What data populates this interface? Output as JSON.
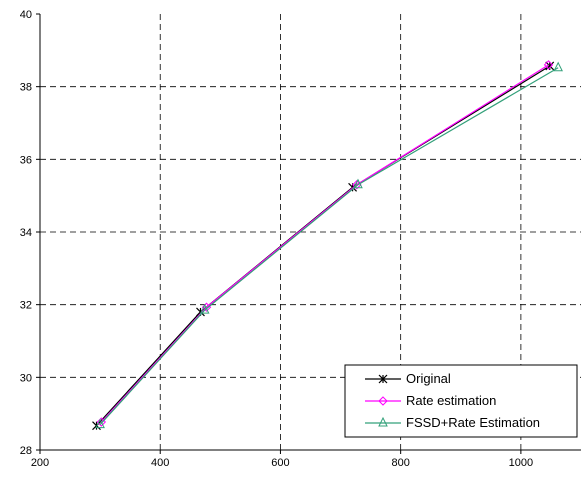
{
  "chart_data": {
    "type": "line",
    "title": "",
    "xlabel": "",
    "ylabel": "",
    "xlim": [
      200,
      1100
    ],
    "ylim": [
      28,
      40
    ],
    "xticks": [
      200,
      400,
      600,
      800,
      1000
    ],
    "yticks": [
      28,
      30,
      32,
      34,
      36,
      38,
      40
    ],
    "grid": true,
    "legend_position": "bottom-right",
    "series": [
      {
        "name": "Original",
        "color": "#000000",
        "marker": "asterisk",
        "x": [
          294,
          467,
          720,
          1048
        ],
        "y": [
          28.67,
          31.8,
          35.23,
          38.57
        ]
      },
      {
        "name": "Rate estimation",
        "color": "#ff00ff",
        "marker": "diamond",
        "x": [
          302,
          477,
          727,
          1046
        ],
        "y": [
          28.77,
          31.93,
          35.3,
          38.6
        ]
      },
      {
        "name": "FSSD+Rate Estimation",
        "color": "#33a07a",
        "marker": "triangle",
        "x": [
          300,
          474,
          729,
          1062
        ],
        "y": [
          28.7,
          31.85,
          35.3,
          38.52
        ]
      }
    ]
  }
}
